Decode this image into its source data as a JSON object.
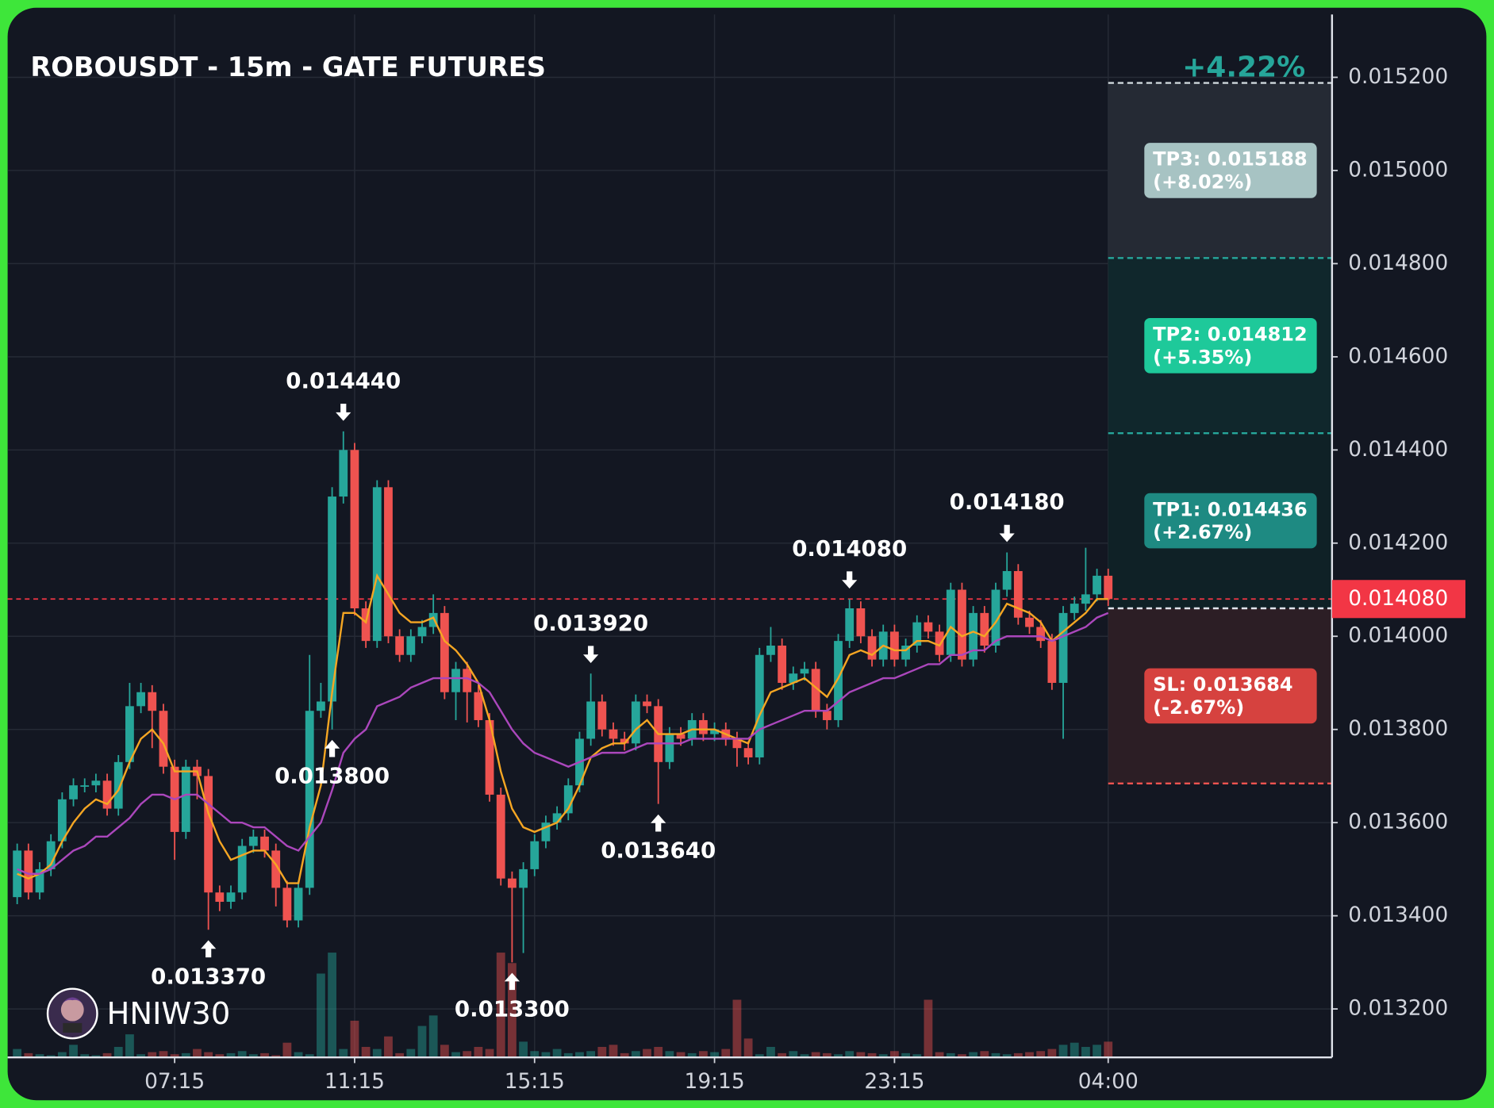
{
  "chart_data": {
    "type": "candlestick",
    "title": "ROBOUSDT - 15m - GATE FUTURES",
    "change_label": "+4.22%",
    "change_color": "#26a69a",
    "watermark": "HNIW30",
    "up_color": "#26a69a",
    "down_color": "#ef5350",
    "grid": true,
    "xlim": [
      -0.85,
      116.9
    ],
    "ylim": [
      0.013096,
      0.015335
    ],
    "xticks": [
      {
        "value": 14,
        "label": "07:15"
      },
      {
        "value": 30,
        "label": "11:15"
      },
      {
        "value": 46,
        "label": "15:15"
      },
      {
        "value": 62,
        "label": "19:15"
      },
      {
        "value": 78,
        "label": "23:15"
      },
      {
        "value": 97,
        "label": "04:00"
      }
    ],
    "yticks": [
      {
        "value": 0.0132,
        "label": "0.013200"
      },
      {
        "value": 0.0134,
        "label": "0.013400"
      },
      {
        "value": 0.0136,
        "label": "0.013600"
      },
      {
        "value": 0.0138,
        "label": "0.013800"
      },
      {
        "value": 0.014,
        "label": "0.014000"
      },
      {
        "value": 0.0142,
        "label": "0.014200"
      },
      {
        "value": 0.0144,
        "label": "0.014400"
      },
      {
        "value": 0.0146,
        "label": "0.014600"
      },
      {
        "value": 0.0148,
        "label": "0.014800"
      },
      {
        "value": 0.015,
        "label": "0.015000"
      },
      {
        "value": 0.0152,
        "label": "0.015200"
      }
    ],
    "open": [
      0.01344,
      0.01354,
      0.01345,
      0.0135,
      0.01356,
      0.01365,
      0.01368,
      0.01368,
      0.01369,
      0.01363,
      0.01373,
      0.01385,
      0.01388,
      0.01384,
      0.01372,
      0.01358,
      0.01372,
      0.0137,
      0.01345,
      0.01343,
      0.01345,
      0.01355,
      0.01357,
      0.01354,
      0.01346,
      0.01339,
      0.01346,
      0.01384,
      0.01386,
      0.0143,
      0.0144,
      0.01406,
      0.01399,
      0.01432,
      0.014,
      0.01396,
      0.014,
      0.01402,
      0.01405,
      0.01388,
      0.01393,
      0.01388,
      0.01382,
      0.01366,
      0.01348,
      0.01346,
      0.0135,
      0.01356,
      0.0136,
      0.01362,
      0.01368,
      0.01378,
      0.01386,
      0.0138,
      0.01378,
      0.01377,
      0.01386,
      0.01385,
      0.01373,
      0.01379,
      0.01378,
      0.01382,
      0.01379,
      0.0138,
      0.01378,
      0.01376,
      0.01374,
      0.01396,
      0.01398,
      0.0139,
      0.01392,
      0.01393,
      0.01384,
      0.01382,
      0.01399,
      0.01406,
      0.014,
      0.01395,
      0.01401,
      0.01395,
      0.01398,
      0.01403,
      0.01401,
      0.01396,
      0.0141,
      0.01395,
      0.01405,
      0.01398,
      0.0141,
      0.01414,
      0.01404,
      0.01402,
      0.01399,
      0.0139,
      0.01405,
      0.01407,
      0.01409,
      0.01413
    ],
    "high": [
      0.013555,
      0.013555,
      0.013515,
      0.013575,
      0.013665,
      0.013695,
      0.013695,
      0.013705,
      0.013705,
      0.013745,
      0.0139,
      0.0139,
      0.013895,
      0.013855,
      0.013735,
      0.013735,
      0.013735,
      0.013715,
      0.013465,
      0.013465,
      0.013565,
      0.013585,
      0.013585,
      0.013555,
      0.013475,
      0.013475,
      0.01396,
      0.0139,
      0.01432,
      0.01444,
      0.014415,
      0.014075,
      0.014335,
      0.014335,
      0.014015,
      0.014015,
      0.014035,
      0.01409,
      0.014065,
      0.013945,
      0.013945,
      0.013895,
      0.013835,
      0.013675,
      0.013495,
      0.013515,
      0.013575,
      0.013615,
      0.013635,
      0.013695,
      0.013795,
      0.01392,
      0.013875,
      0.013815,
      0.013795,
      0.013875,
      0.013875,
      0.013865,
      0.013805,
      0.013805,
      0.013835,
      0.013835,
      0.013815,
      0.013815,
      0.013795,
      0.013775,
      0.013975,
      0.01402,
      0.013995,
      0.013935,
      0.013945,
      0.013945,
      0.013855,
      0.014005,
      0.01408,
      0.014075,
      0.014015,
      0.014025,
      0.014025,
      0.013995,
      0.014045,
      0.014045,
      0.014025,
      0.014115,
      0.014115,
      0.014065,
      0.014065,
      0.014115,
      0.01418,
      0.014155,
      0.014055,
      0.014035,
      0.014005,
      0.014065,
      0.014085,
      0.01419,
      0.014145,
      0.014145
    ],
    "low": [
      0.013425,
      0.013435,
      0.013435,
      0.013485,
      0.013545,
      0.013635,
      0.013665,
      0.013665,
      0.013615,
      0.013615,
      0.013715,
      0.013835,
      0.01376,
      0.013705,
      0.01352,
      0.013565,
      0.01365,
      0.01337,
      0.01341,
      0.013415,
      0.013435,
      0.013535,
      0.013525,
      0.01342,
      0.013375,
      0.013375,
      0.013445,
      0.013825,
      0.0138,
      0.014285,
      0.014045,
      0.013975,
      0.013975,
      0.013985,
      0.013945,
      0.013945,
      0.013985,
      0.014005,
      0.013865,
      0.01382,
      0.013815,
      0.013805,
      0.013645,
      0.013465,
      0.0133,
      0.01332,
      0.013485,
      0.013545,
      0.013585,
      0.013605,
      0.013665,
      0.013765,
      0.013785,
      0.013765,
      0.013755,
      0.013755,
      0.013835,
      0.01364,
      0.013715,
      0.013765,
      0.013765,
      0.013775,
      0.013775,
      0.013765,
      0.01372,
      0.013725,
      0.013725,
      0.013945,
      0.013885,
      0.013885,
      0.013905,
      0.013825,
      0.0138,
      0.013805,
      0.013975,
      0.013985,
      0.013935,
      0.013935,
      0.013935,
      0.013935,
      0.013965,
      0.013995,
      0.013945,
      0.013945,
      0.013935,
      0.013935,
      0.013965,
      0.013965,
      0.014085,
      0.014025,
      0.014005,
      0.013975,
      0.013885,
      0.01378,
      0.014035,
      0.014055,
      0.014075,
      0.014065
    ],
    "close": [
      0.01354,
      0.01345,
      0.0135,
      0.01356,
      0.01365,
      0.01368,
      0.01368,
      0.01369,
      0.01363,
      0.01373,
      0.01385,
      0.01388,
      0.01384,
      0.01372,
      0.01358,
      0.01372,
      0.0137,
      0.01345,
      0.01343,
      0.01345,
      0.01355,
      0.01357,
      0.01354,
      0.01346,
      0.01339,
      0.01346,
      0.01384,
      0.01386,
      0.0143,
      0.0144,
      0.01406,
      0.01399,
      0.01432,
      0.014,
      0.01396,
      0.014,
      0.01402,
      0.01405,
      0.01388,
      0.01393,
      0.01388,
      0.01382,
      0.01366,
      0.01348,
      0.01346,
      0.0135,
      0.01356,
      0.0136,
      0.01362,
      0.01368,
      0.01378,
      0.01386,
      0.0138,
      0.01378,
      0.01377,
      0.01386,
      0.01385,
      0.01373,
      0.01379,
      0.01378,
      0.01382,
      0.01379,
      0.0138,
      0.01378,
      0.01376,
      0.01374,
      0.01396,
      0.01398,
      0.0139,
      0.01392,
      0.01393,
      0.01384,
      0.01382,
      0.01399,
      0.01406,
      0.014,
      0.01395,
      0.01401,
      0.01395,
      0.01398,
      0.01403,
      0.01401,
      0.01396,
      0.0141,
      0.01395,
      0.01405,
      0.01398,
      0.0141,
      0.01414,
      0.01404,
      0.01402,
      0.01399,
      0.0139,
      0.01405,
      0.01407,
      0.01409,
      0.01413,
      0.01408
    ],
    "volume": [
      8,
      4,
      3,
      2,
      5,
      12,
      3,
      2,
      4,
      10,
      22,
      3,
      5,
      6,
      3,
      4,
      8,
      5,
      3,
      4,
      6,
      3,
      4,
      2,
      14,
      5,
      3,
      80,
      100,
      8,
      35,
      10,
      8,
      20,
      4,
      8,
      30,
      40,
      12,
      5,
      6,
      10,
      8,
      100,
      90,
      15,
      6,
      5,
      8,
      4,
      5,
      6,
      10,
      12,
      4,
      6,
      8,
      10,
      6,
      5,
      4,
      6,
      5,
      8,
      55,
      18,
      3,
      10,
      4,
      6,
      3,
      5,
      4,
      3,
      6,
      5,
      4,
      3,
      6,
      4,
      3,
      55,
      5,
      4,
      3,
      5,
      6,
      4,
      3,
      4,
      5,
      6,
      8,
      12,
      14,
      10,
      12,
      15
    ],
    "lines": [
      {
        "color": "#f5a623",
        "values": [
          0.01349,
          0.01348,
          0.01349,
          0.01351,
          0.01356,
          0.0136,
          0.01363,
          0.01365,
          0.01364,
          0.01367,
          0.01373,
          0.01378,
          0.0138,
          0.01377,
          0.01371,
          0.01371,
          0.01371,
          0.01362,
          0.01356,
          0.01352,
          0.01353,
          0.01354,
          0.01354,
          0.01351,
          0.01347,
          0.01347,
          0.01359,
          0.01368,
          0.01388,
          0.01405,
          0.01405,
          0.01403,
          0.01413,
          0.01409,
          0.01405,
          0.01403,
          0.01403,
          0.01404,
          0.01399,
          0.01397,
          0.01394,
          0.0139,
          0.01382,
          0.01371,
          0.01363,
          0.01359,
          0.01358,
          0.01359,
          0.0136,
          0.01363,
          0.01368,
          0.01374,
          0.01376,
          0.01377,
          0.01377,
          0.0138,
          0.01382,
          0.01379,
          0.01379,
          0.01379,
          0.0138,
          0.0138,
          0.0138,
          0.01379,
          0.01378,
          0.01377,
          0.01383,
          0.01388,
          0.01389,
          0.0139,
          0.01391,
          0.01389,
          0.01387,
          0.01391,
          0.01396,
          0.01397,
          0.01396,
          0.01398,
          0.01397,
          0.01397,
          0.01399,
          0.01399,
          0.01398,
          0.01402,
          0.014,
          0.01401,
          0.014,
          0.01403,
          0.01407,
          0.01406,
          0.01405,
          0.01403,
          0.01399,
          0.01401,
          0.01403,
          0.01405,
          0.01408,
          0.01408
        ]
      },
      {
        "color": "#ab47bc",
        "values": [
          0.0135,
          0.01349,
          0.01349,
          0.0135,
          0.01352,
          0.01354,
          0.01355,
          0.01357,
          0.01357,
          0.01359,
          0.01361,
          0.01364,
          0.01366,
          0.01366,
          0.01365,
          0.01366,
          0.01366,
          0.01364,
          0.01362,
          0.0136,
          0.0136,
          0.01359,
          0.01359,
          0.01357,
          0.01355,
          0.01354,
          0.01357,
          0.0136,
          0.01367,
          0.01375,
          0.01378,
          0.0138,
          0.01385,
          0.01386,
          0.01387,
          0.01389,
          0.0139,
          0.01391,
          0.01391,
          0.01391,
          0.01391,
          0.0139,
          0.01388,
          0.01384,
          0.0138,
          0.01377,
          0.01375,
          0.01374,
          0.01373,
          0.01372,
          0.01373,
          0.01374,
          0.01375,
          0.01375,
          0.01375,
          0.01376,
          0.01377,
          0.01377,
          0.01377,
          0.01377,
          0.01378,
          0.01378,
          0.01378,
          0.01378,
          0.01378,
          0.01378,
          0.0138,
          0.01381,
          0.01382,
          0.01383,
          0.01384,
          0.01384,
          0.01384,
          0.01386,
          0.01388,
          0.01389,
          0.0139,
          0.01391,
          0.01391,
          0.01392,
          0.01393,
          0.01394,
          0.01394,
          0.01396,
          0.01396,
          0.01397,
          0.01397,
          0.01399,
          0.014,
          0.014,
          0.014,
          0.014,
          0.01399,
          0.014,
          0.01401,
          0.01402,
          0.01404,
          0.01405
        ]
      }
    ],
    "high_labels": [
      {
        "value": 0.01444,
        "label": "0.014440"
      },
      {
        "value": 0.01392,
        "label": "0.013920"
      },
      {
        "value": 0.01408,
        "label": "0.014080"
      },
      {
        "value": 0.01418,
        "label": "0.014180"
      }
    ],
    "low_labels": [
      {
        "value": 0.01337,
        "label": "0.013370"
      },
      {
        "value": 0.0133,
        "label": "0.013300"
      },
      {
        "value": 0.01364,
        "label": "0.013640"
      },
      {
        "value": 0.0138,
        "label": "0.013800"
      }
    ],
    "last_price": {
      "value": 0.01408,
      "label": "0.014080",
      "color": "#f23645"
    },
    "entry": 0.01406,
    "entry_color": "#e0e3eb",
    "levels": [
      {
        "name": "TP3: 0.015188",
        "change": "(+8.02%)",
        "value": 0.015188,
        "color": "#a7c3c3",
        "line_color": "#cfd8dc",
        "zone_color": "#252a34"
      },
      {
        "name": "TP2: 0.014812",
        "change": "(+5.35%)",
        "value": 0.014812,
        "color": "#1ec99a",
        "line_color": "#26a69a",
        "zone_color": "#10272c"
      },
      {
        "name": "TP1: 0.014436",
        "change": "(+2.67%)",
        "value": 0.014436,
        "color": "#1e8a82",
        "line_color": "#26a69a",
        "zone_color": "#0f2126"
      },
      {
        "name": "SL: 0.013684",
        "change": "(-2.67%)",
        "value": 0.013684,
        "color": "#d6423f",
        "line_color": "#ef5350",
        "zone_color": "#2c1e25"
      }
    ]
  }
}
